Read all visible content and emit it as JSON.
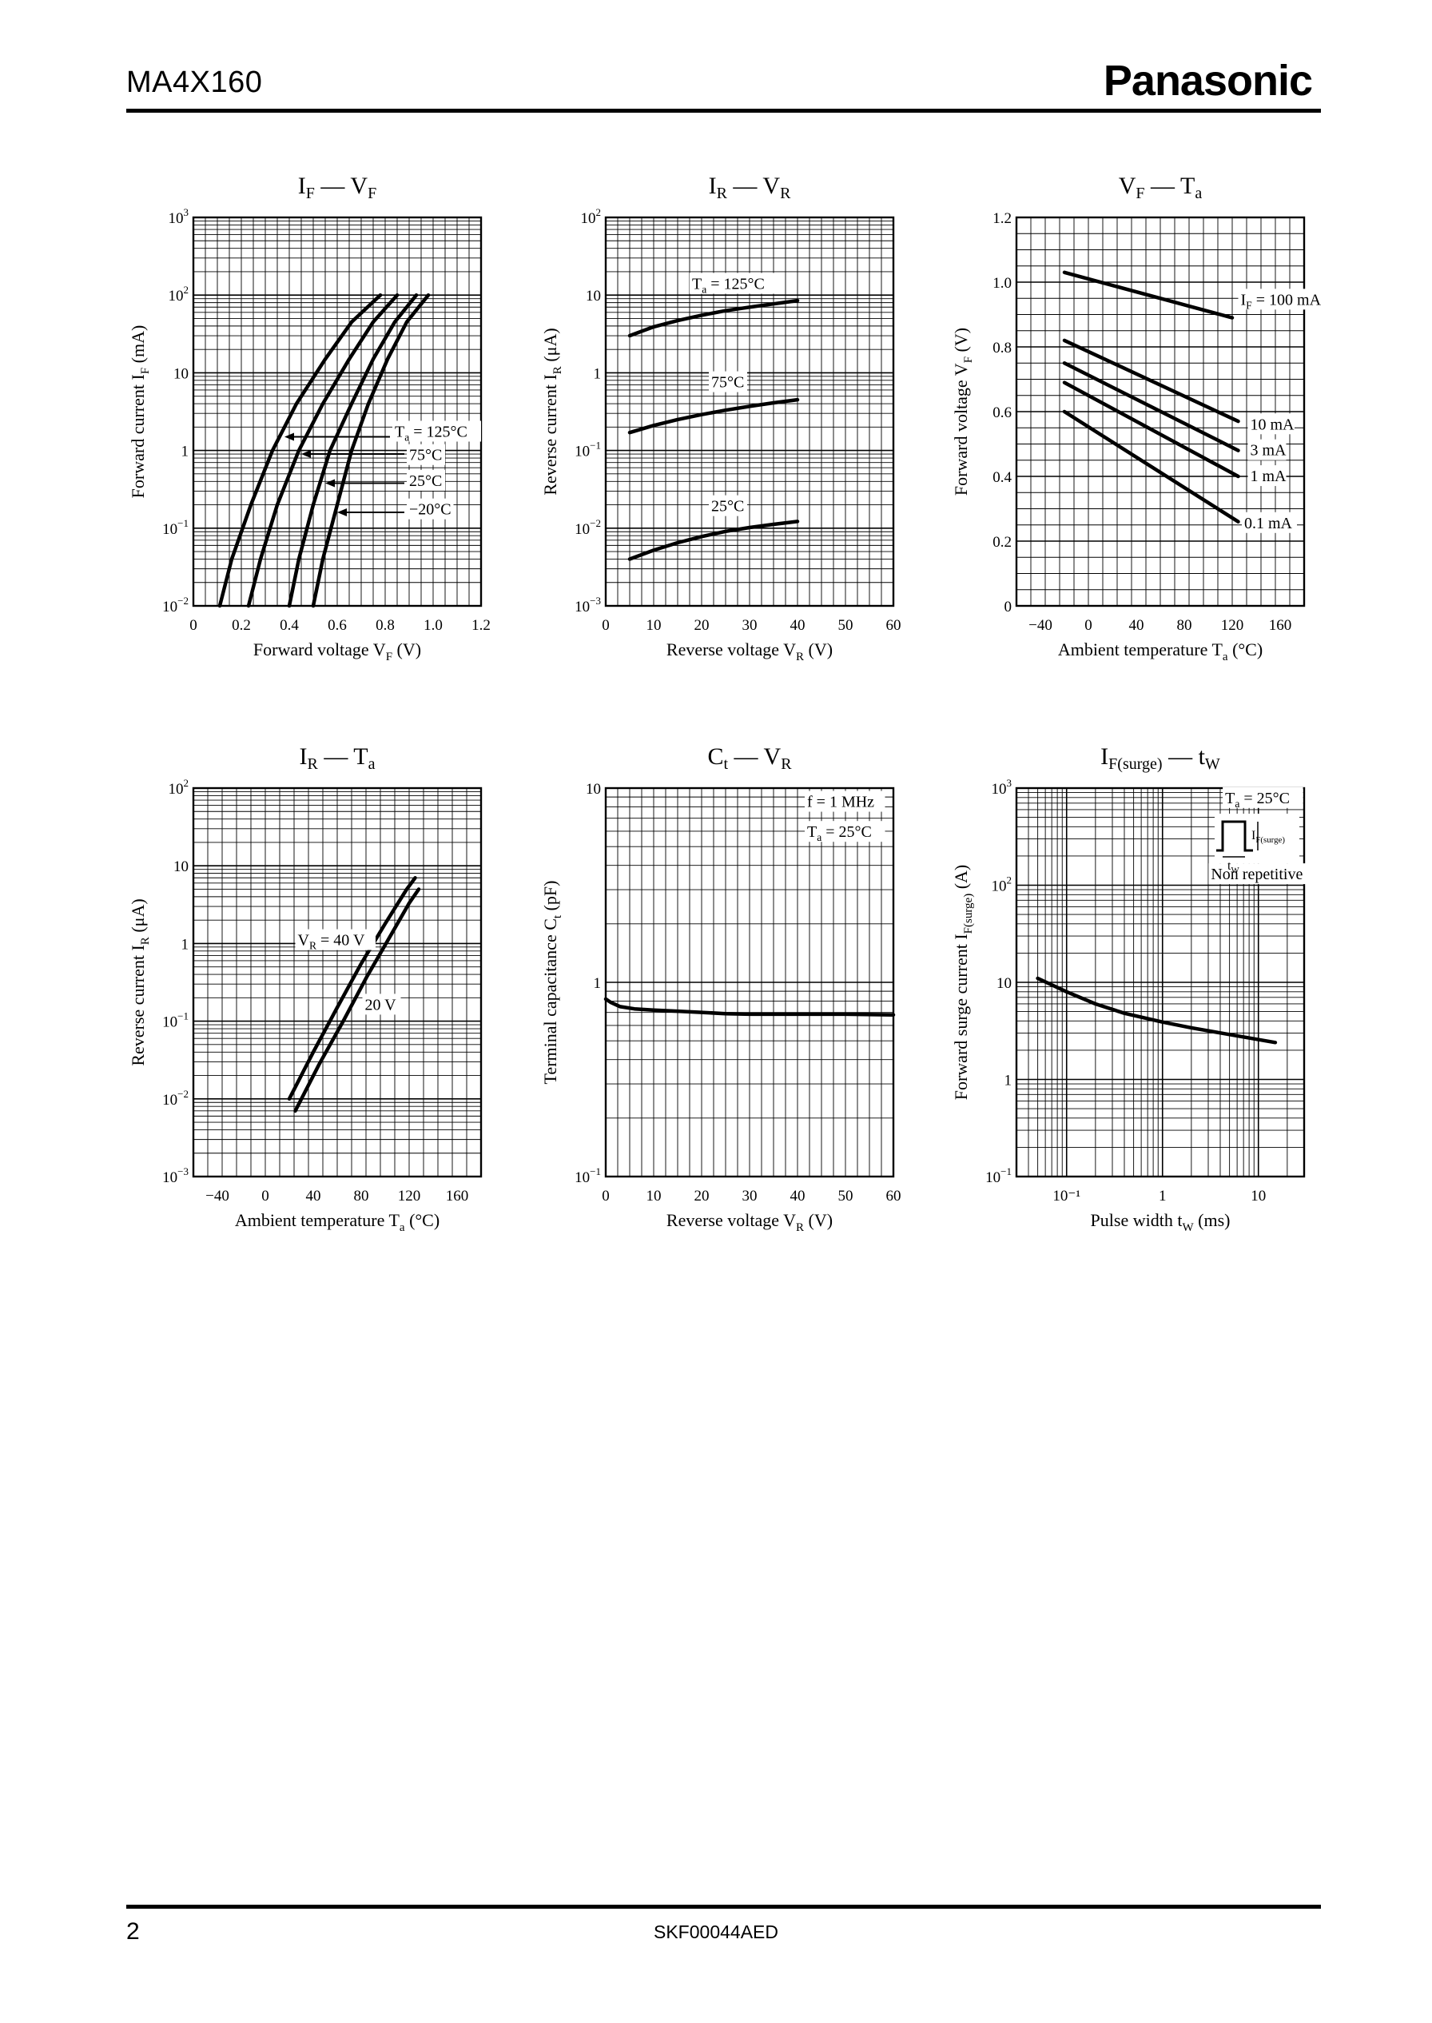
{
  "header": {
    "part_number": "MA4X160",
    "brand": "Panasonic"
  },
  "footer": {
    "page": "2",
    "doc_code": "SKF00044AED"
  },
  "chart_data": [
    {
      "id": "c1",
      "type": "line",
      "title": "I F — V F",
      "title_main1": "I",
      "title_sub1": "F",
      "title_main2": "V",
      "title_sub2": "F",
      "xlabel": "Forward voltage  V",
      "xlabel_sub": "F",
      "xlabel_unit": "(V)",
      "ylabel": "Forward current  I",
      "ylabel_sub": "F",
      "ylabel_unit": "(mA)",
      "xscale": "linear",
      "xlim": [
        0,
        1.2
      ],
      "xticks": [
        0,
        0.2,
        0.4,
        0.6,
        0.8,
        1.0,
        1.2
      ],
      "xtick_labels": [
        "0",
        "0.2",
        "0.4",
        "0.6",
        "0.8",
        "1.0",
        "1.2"
      ],
      "yscale": "log",
      "ylim": [
        0.01,
        1000
      ],
      "ytick_labels": [
        {
          "base": "10",
          "exp": "−2"
        },
        {
          "base": "10",
          "exp": "−1"
        },
        {
          "base": "1",
          "exp": ""
        },
        {
          "base": "10",
          "exp": ""
        },
        {
          "base": "10",
          "exp": "2"
        },
        {
          "base": "10",
          "exp": "3"
        }
      ],
      "series": [
        {
          "name": "Ta = 125°C",
          "x": [
            0.11,
            0.16,
            0.24,
            0.33,
            0.43,
            0.55,
            0.66,
            0.78
          ],
          "y": [
            0.01,
            0.04,
            0.2,
            1,
            4,
            15,
            45,
            100
          ]
        },
        {
          "name": "75°C",
          "x": [
            0.23,
            0.28,
            0.35,
            0.44,
            0.54,
            0.65,
            0.75,
            0.85
          ],
          "y": [
            0.01,
            0.04,
            0.2,
            1,
            4,
            15,
            45,
            100
          ]
        },
        {
          "name": "25°C",
          "x": [
            0.4,
            0.44,
            0.5,
            0.57,
            0.66,
            0.75,
            0.84,
            0.93
          ],
          "y": [
            0.01,
            0.04,
            0.2,
            1,
            4,
            15,
            45,
            100
          ]
        },
        {
          "name": "−20°C",
          "x": [
            0.5,
            0.54,
            0.6,
            0.66,
            0.73,
            0.81,
            0.89,
            0.98
          ],
          "y": [
            0.01,
            0.04,
            0.2,
            1,
            4,
            15,
            45,
            100
          ]
        }
      ],
      "annotations": [
        {
          "text": "T",
          "sub": "a",
          "rest": " = 125°C",
          "x": 0.84,
          "y": 1.5,
          "arrow_to": [
            0.38,
            1.5
          ],
          "arrow_from": [
            0.82,
            1.5
          ]
        },
        {
          "text": "75°C",
          "sub": "",
          "rest": "",
          "x": 0.9,
          "y": 0.75,
          "arrow_to": [
            0.45,
            0.9
          ],
          "arrow_from": [
            0.88,
            0.9
          ]
        },
        {
          "text": "25°C",
          "sub": "",
          "rest": "",
          "x": 0.9,
          "y": 0.35,
          "arrow_to": [
            0.55,
            0.38
          ],
          "arrow_from": [
            0.88,
            0.38
          ]
        },
        {
          "text": "−20°C",
          "sub": "",
          "rest": "",
          "x": 0.9,
          "y": 0.15,
          "arrow_to": [
            0.6,
            0.16
          ],
          "arrow_from": [
            0.88,
            0.16
          ]
        }
      ]
    },
    {
      "id": "c2",
      "type": "line",
      "title": "I R — V R",
      "title_main1": "I",
      "title_sub1": "R",
      "title_main2": "V",
      "title_sub2": "R",
      "xlabel": "Reverse voltage  V",
      "xlabel_sub": "R",
      "xlabel_unit": "(V)",
      "ylabel": "Reverse current  I",
      "ylabel_sub": "R",
      "ylabel_unit": "(μA)",
      "xscale": "linear",
      "xlim": [
        0,
        60
      ],
      "xticks": [
        0,
        10,
        20,
        30,
        40,
        50,
        60
      ],
      "xtick_labels": [
        "0",
        "10",
        "20",
        "30",
        "40",
        "50",
        "60"
      ],
      "yscale": "log",
      "ylim": [
        0.001,
        100
      ],
      "ytick_labels": [
        {
          "base": "10",
          "exp": "−3"
        },
        {
          "base": "10",
          "exp": "−2"
        },
        {
          "base": "10",
          "exp": "−1"
        },
        {
          "base": "1",
          "exp": ""
        },
        {
          "base": "10",
          "exp": ""
        },
        {
          "base": "10",
          "exp": "2"
        }
      ],
      "series": [
        {
          "name": "Ta = 125°C",
          "x": [
            5,
            10,
            15,
            20,
            25,
            30,
            35,
            40
          ],
          "y": [
            3.0,
            3.9,
            4.7,
            5.5,
            6.3,
            7.0,
            7.7,
            8.5
          ]
        },
        {
          "name": "75°C",
          "x": [
            5,
            10,
            15,
            20,
            25,
            30,
            35,
            40
          ],
          "y": [
            0.17,
            0.21,
            0.25,
            0.29,
            0.33,
            0.37,
            0.41,
            0.45
          ]
        },
        {
          "name": "25°C",
          "x": [
            5,
            10,
            15,
            20,
            25,
            30,
            35,
            40
          ],
          "y": [
            0.004,
            0.0052,
            0.0065,
            0.0078,
            0.0091,
            0.0102,
            0.0112,
            0.0122
          ]
        }
      ],
      "annotations": [
        {
          "text": "T",
          "sub": "a",
          "rest": " = 125°C",
          "x": 18,
          "y": 12
        },
        {
          "text": "75°C",
          "sub": "",
          "rest": "",
          "x": 22,
          "y": 0.65
        },
        {
          "text": "25°C",
          "sub": "",
          "rest": "",
          "x": 22,
          "y": 0.0165
        }
      ]
    },
    {
      "id": "c3",
      "type": "line",
      "title": "V F — T a",
      "title_main1": "V",
      "title_sub1": "F",
      "title_main2": "T",
      "title_sub2": "a",
      "xlabel": "Ambient temperature  T",
      "xlabel_sub": "a",
      "xlabel_unit": "(°C)",
      "ylabel": "Forward voltage  V",
      "ylabel_sub": "F",
      "ylabel_unit": "(V)",
      "xscale": "linear",
      "xlim": [
        -60,
        180
      ],
      "xticks": [
        -40,
        0,
        40,
        80,
        120,
        160
      ],
      "xtick_labels": [
        "−40",
        "0",
        "40",
        "80",
        "120",
        "160"
      ],
      "yscale": "linear",
      "ylim": [
        0,
        1.2
      ],
      "yticks": [
        0,
        0.2,
        0.4,
        0.6,
        0.8,
        1.0,
        1.2
      ],
      "ytick_labels": [
        {
          "base": "0",
          "exp": ""
        },
        {
          "base": "0.2",
          "exp": ""
        },
        {
          "base": "0.4",
          "exp": ""
        },
        {
          "base": "0.6",
          "exp": ""
        },
        {
          "base": "0.8",
          "exp": ""
        },
        {
          "base": "1.0",
          "exp": ""
        },
        {
          "base": "1.2",
          "exp": ""
        }
      ],
      "series": [
        {
          "name": "IF = 100 mA",
          "x": [
            -20,
            120
          ],
          "y": [
            1.03,
            0.89
          ]
        },
        {
          "name": "10 mA",
          "x": [
            -20,
            125
          ],
          "y": [
            0.82,
            0.57
          ]
        },
        {
          "name": "3 mA",
          "x": [
            -20,
            125
          ],
          "y": [
            0.75,
            0.48
          ]
        },
        {
          "name": "1 mA",
          "x": [
            -20,
            125
          ],
          "y": [
            0.69,
            0.4
          ]
        },
        {
          "name": "0.1 mA",
          "x": [
            -20,
            125
          ],
          "y": [
            0.6,
            0.26
          ]
        }
      ],
      "annotations": [
        {
          "text": "I",
          "sub": "F",
          "rest": " = 100 mA",
          "x": 127,
          "y": 0.93
        },
        {
          "text": "10 mA",
          "sub": "",
          "rest": "",
          "x": 135,
          "y": 0.545
        },
        {
          "text": "3 mA",
          "sub": "",
          "rest": "",
          "x": 135,
          "y": 0.465
        },
        {
          "text": "1 mA",
          "sub": "",
          "rest": "",
          "x": 135,
          "y": 0.385
        },
        {
          "text": "0.1 mA",
          "sub": "",
          "rest": "",
          "x": 130,
          "y": 0.24
        }
      ]
    },
    {
      "id": "c4",
      "type": "line",
      "title": "I R — T a",
      "title_main1": "I",
      "title_sub1": "R",
      "title_main2": "T",
      "title_sub2": "a",
      "xlabel": "Ambient temperature  T",
      "xlabel_sub": "a",
      "xlabel_unit": "(°C)",
      "ylabel": "Reverse current  I",
      "ylabel_sub": "R",
      "ylabel_unit": "(μA)",
      "xscale": "linear",
      "xlim": [
        -60,
        180
      ],
      "xticks": [
        -40,
        0,
        40,
        80,
        120,
        160
      ],
      "xtick_labels": [
        "−40",
        "0",
        "40",
        "80",
        "120",
        "160"
      ],
      "yscale": "log",
      "ylim": [
        0.001,
        100
      ],
      "ytick_labels": [
        {
          "base": "10",
          "exp": "−3"
        },
        {
          "base": "10",
          "exp": "−2"
        },
        {
          "base": "10",
          "exp": "−1"
        },
        {
          "base": "1",
          "exp": ""
        },
        {
          "base": "10",
          "exp": ""
        },
        {
          "base": "10",
          "exp": "2"
        }
      ],
      "series": [
        {
          "name": "VR = 40 V",
          "x": [
            20,
            40,
            60,
            80,
            100,
            118,
            125
          ],
          "y": [
            0.01,
            0.04,
            0.15,
            0.55,
            1.8,
            5,
            7
          ]
        },
        {
          "name": "20 V",
          "x": [
            25,
            45,
            65,
            85,
            105,
            120,
            128
          ],
          "y": [
            0.007,
            0.028,
            0.1,
            0.38,
            1.3,
            3.3,
            5
          ]
        }
      ],
      "annotations": [
        {
          "text": "V",
          "sub": "R",
          "rest": " = 40 V",
          "x": 27,
          "y": 0.95
        },
        {
          "text": "20 V",
          "sub": "",
          "rest": "",
          "x": 83,
          "y": 0.14
        }
      ]
    },
    {
      "id": "c5",
      "type": "line",
      "title": "C t — V R",
      "title_main1": "C",
      "title_sub1": "t",
      "title_main2": "V",
      "title_sub2": "R",
      "xlabel": "Reverse voltage  V",
      "xlabel_sub": "R",
      "xlabel_unit": "(V)",
      "ylabel": "Terminal capacitance  C",
      "ylabel_sub": "t",
      "ylabel_unit": "(pF)",
      "xscale": "linear",
      "xlim": [
        0,
        60
      ],
      "xticks": [
        0,
        10,
        20,
        30,
        40,
        50,
        60
      ],
      "xtick_labels": [
        "0",
        "10",
        "20",
        "30",
        "40",
        "50",
        "60"
      ],
      "yscale": "log",
      "ylim": [
        0.1,
        10
      ],
      "ytick_labels": [
        {
          "base": "10",
          "exp": "−1"
        },
        {
          "base": "1",
          "exp": ""
        },
        {
          "base": "10",
          "exp": ""
        }
      ],
      "series": [
        {
          "name": "Ct",
          "x": [
            0,
            1,
            3,
            6,
            10,
            15,
            20,
            25,
            30,
            40,
            50,
            60
          ],
          "y": [
            0.82,
            0.79,
            0.75,
            0.73,
            0.72,
            0.71,
            0.7,
            0.69,
            0.685,
            0.685,
            0.685,
            0.68
          ]
        }
      ],
      "annotations": [
        {
          "text": "f = 1 MHz",
          "sub": "",
          "rest": "",
          "x": 42,
          "y": 8.0
        },
        {
          "text": "T",
          "sub": "a",
          "rest": " = 25°C",
          "x": 42,
          "y": 5.6
        }
      ]
    },
    {
      "id": "c6",
      "type": "line",
      "title": "I F(surge) — t W",
      "title_main1": "I",
      "title_sub1": "F(surge)",
      "title_main2": "t",
      "title_sub2": "W",
      "xlabel": "Pulse width  t",
      "xlabel_sub": "W",
      "xlabel_unit": "(ms)",
      "ylabel": "Forward surge current  I",
      "ylabel_sub": "F(surge)",
      "ylabel_unit": "(A)",
      "xscale": "log",
      "xlim": [
        0.03,
        30
      ],
      "xtick_values": [
        0.1,
        1,
        10
      ],
      "xtick_labels": [
        "10⁻¹",
        "1",
        "10"
      ],
      "yscale": "log",
      "ylim": [
        0.1,
        1000
      ],
      "ytick_labels": [
        {
          "base": "10",
          "exp": "−1"
        },
        {
          "base": "1",
          "exp": ""
        },
        {
          "base": "10",
          "exp": ""
        },
        {
          "base": "10",
          "exp": "2"
        },
        {
          "base": "10",
          "exp": "3"
        }
      ],
      "series": [
        {
          "name": "IF(surge)",
          "x": [
            0.05,
            0.1,
            0.2,
            0.4,
            1,
            2,
            5,
            15
          ],
          "y": [
            11,
            8,
            6.0,
            4.8,
            3.9,
            3.4,
            2.9,
            2.4
          ]
        }
      ],
      "annotations": [
        {
          "text": "T",
          "sub": "a",
          "rest": " = 25°C",
          "x": 4.5,
          "y": 700
        },
        {
          "text": "Non repetitive",
          "sub": "",
          "rest": "",
          "x": 3.2,
          "y": 115
        }
      ],
      "inset": {
        "ifsurge_main": "I",
        "ifsurge_sub": "F(surge)",
        "tw_main": "t",
        "tw_sub": "W"
      }
    }
  ]
}
